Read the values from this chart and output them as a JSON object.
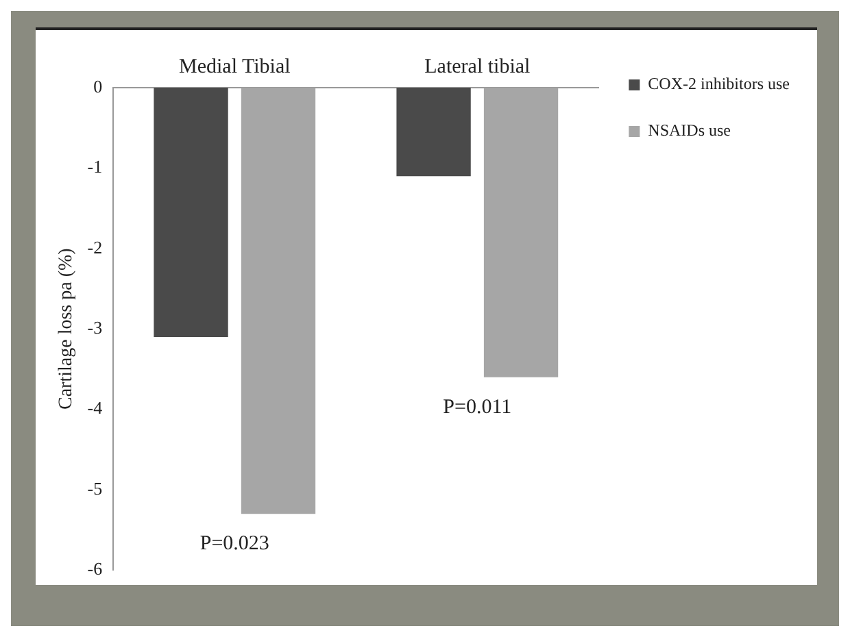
{
  "chart_data": {
    "type": "bar",
    "ylabel": "Cartilage loss pa (%)",
    "categories": [
      "Medial Tibial",
      "Lateral tibial"
    ],
    "series": [
      {
        "name": "COX-2 inhibitors use",
        "color": "#4a4a4a",
        "values": [
          -3.1,
          -1.1
        ]
      },
      {
        "name": "NSAIDs use",
        "color": "#a6a6a6",
        "values": [
          -5.3,
          -3.6
        ]
      }
    ],
    "ylim": [
      -6,
      0
    ],
    "yticks": [
      -6,
      -5,
      -4,
      -3,
      -2,
      -1,
      0
    ],
    "grid": false,
    "legend": "right",
    "annotations": [
      "P=0.023",
      "P=0.011"
    ]
  }
}
